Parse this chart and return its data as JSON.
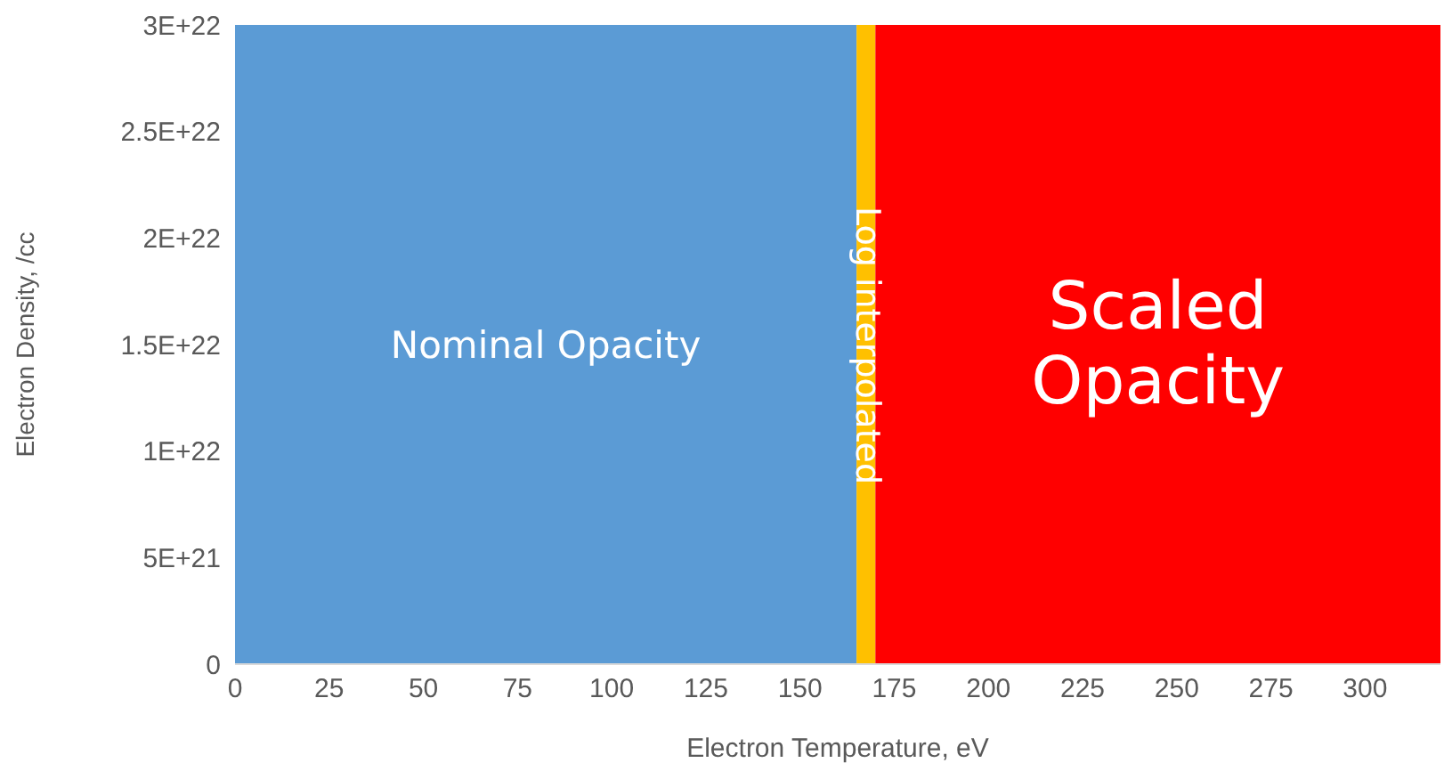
{
  "chart_data": {
    "type": "area",
    "xlabel": "Electron Temperature,  eV",
    "ylabel": "Electron Density, /cc",
    "xlim": [
      0,
      320
    ],
    "xticks": [
      0,
      25,
      50,
      75,
      100,
      125,
      150,
      175,
      200,
      225,
      250,
      275,
      300
    ],
    "ylim": [
      0,
      3e+22
    ],
    "yticks": [
      {
        "value": 0,
        "label": "0"
      },
      {
        "value": 5e+21,
        "label": "5E+21"
      },
      {
        "value": 1e+22,
        "label": "1E+22"
      },
      {
        "value": 1.5e+22,
        "label": "1.5E+22"
      },
      {
        "value": 2e+22,
        "label": "2E+22"
      },
      {
        "value": 2.5e+22,
        "label": "2.5E+22"
      },
      {
        "value": 3e+22,
        "label": "3E+22"
      }
    ],
    "grid": false,
    "legend": false,
    "series": [
      {
        "name": "Nominal Opacity",
        "color": "#5b9bd5",
        "x": [
          0,
          165
        ],
        "values": [
          3e+22,
          3e+22
        ]
      },
      {
        "name": "Log interpolated",
        "color": "#ffc000",
        "x": [
          165,
          170
        ],
        "values": [
          3e+22,
          3e+22
        ]
      },
      {
        "name": "Scaled Opacity",
        "color": "#ff0000",
        "x": [
          170,
          320
        ],
        "values": [
          3e+22,
          3e+22
        ]
      }
    ]
  }
}
